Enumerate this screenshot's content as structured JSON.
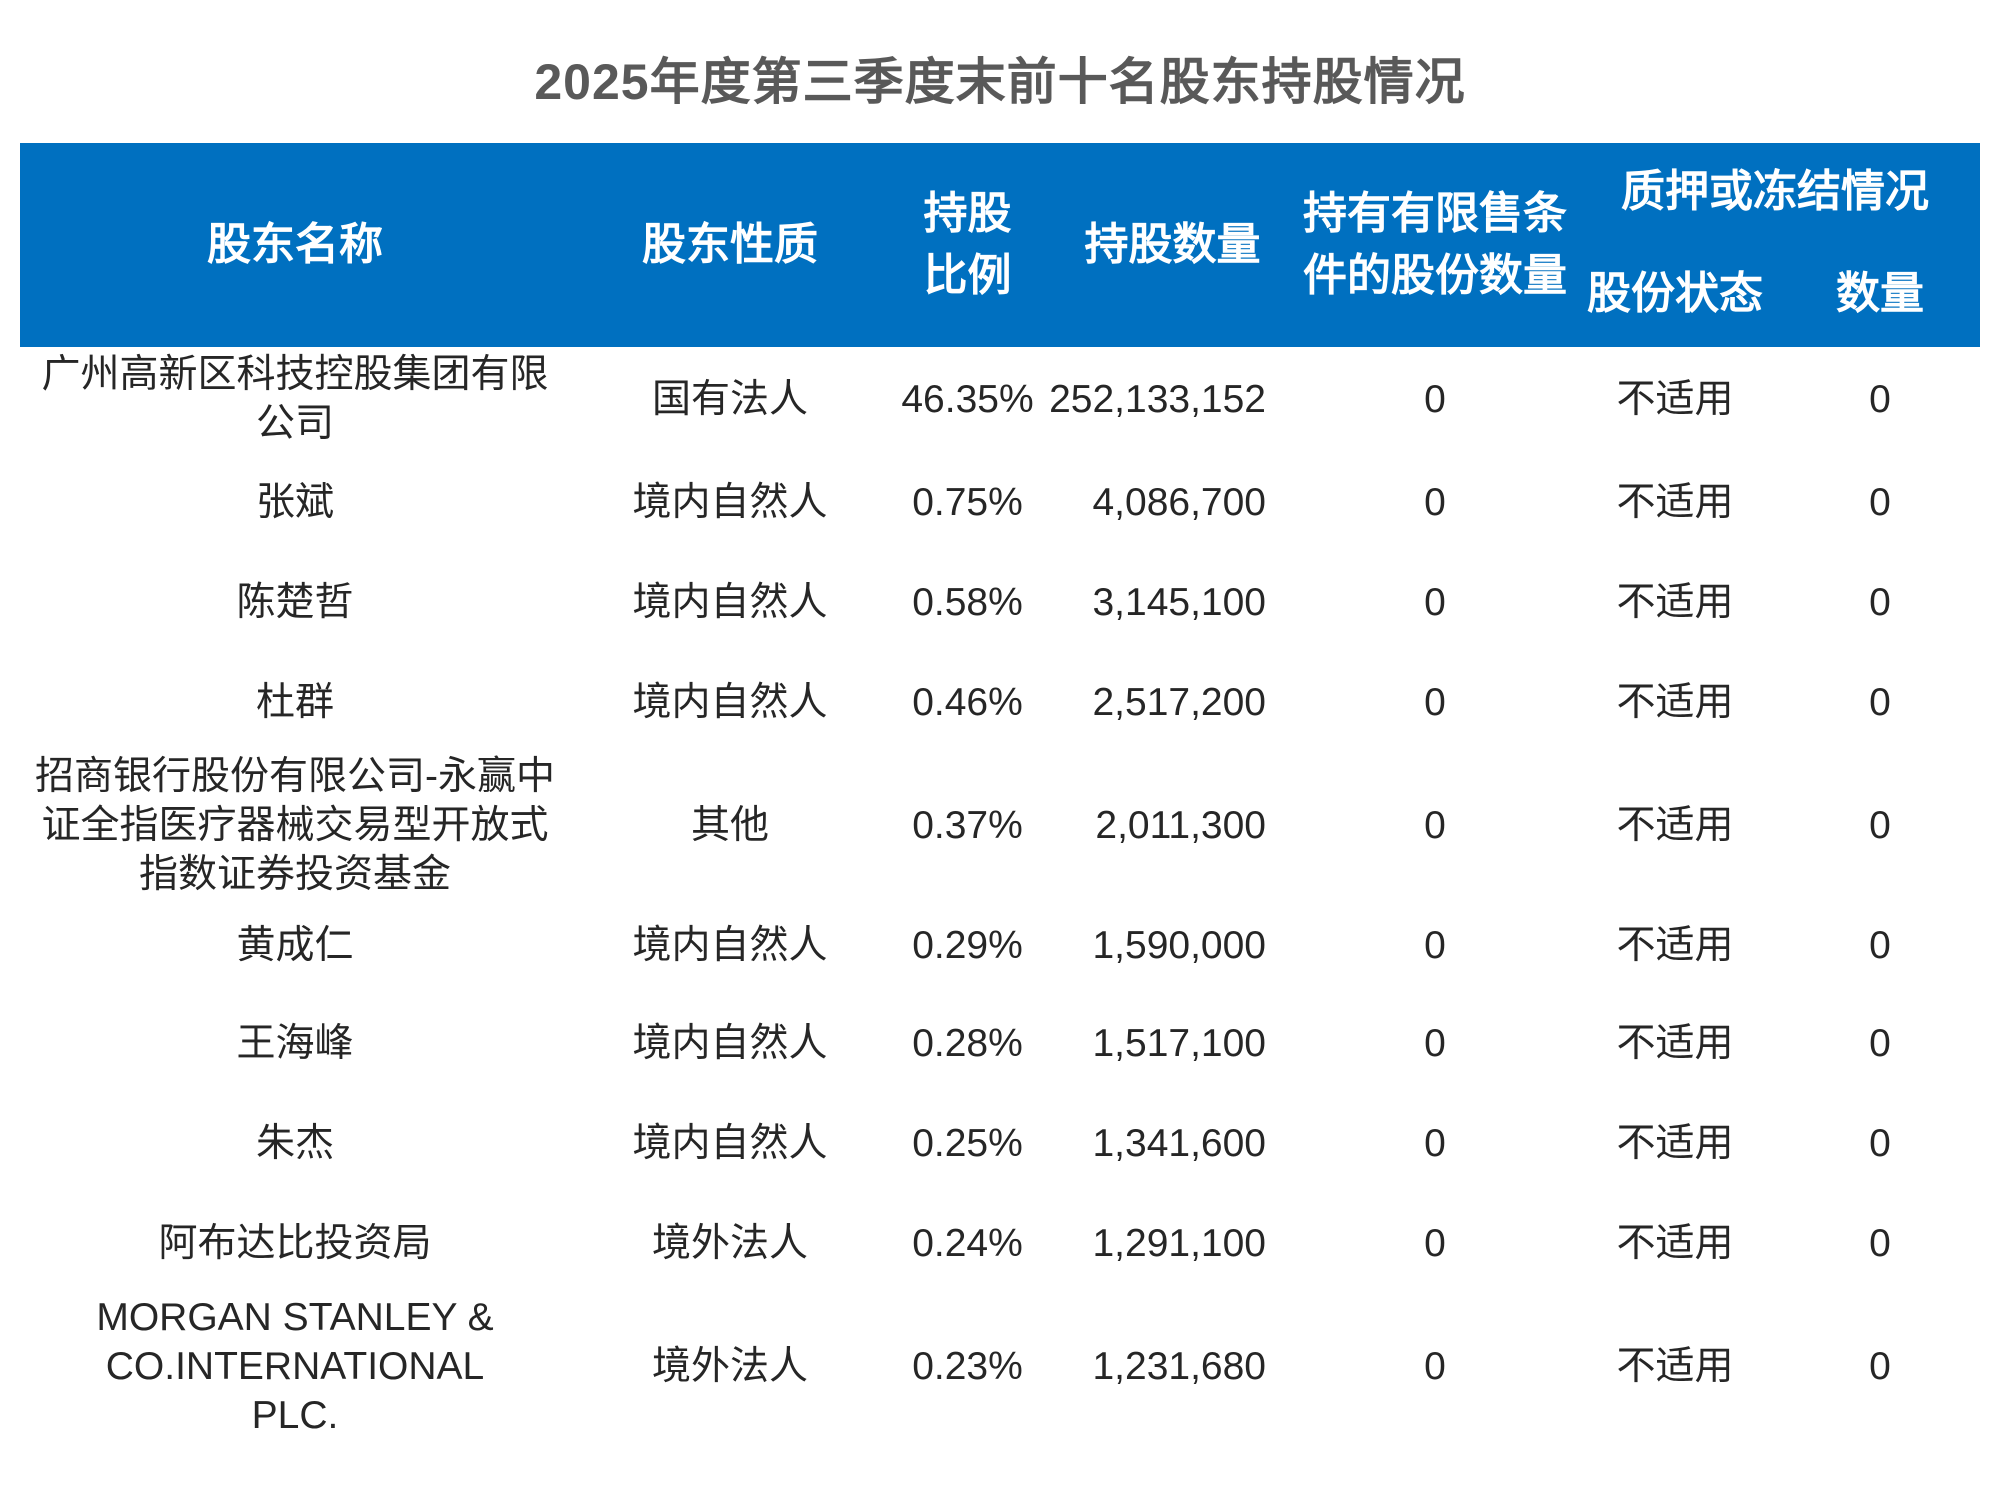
{
  "title": "2025年度第三季度末前十名股东持股情况",
  "colors": {
    "header_bg": "#0070C0",
    "header_text": "#FFFFFF",
    "title_text": "#595959",
    "body_text": "#262626"
  },
  "table": {
    "columns": {
      "name": "股东名称",
      "nature": "股东性质",
      "ratio": "持股\n比例",
      "shares": "持股数量",
      "restricted": "持有有限售条\n件的股份数量",
      "pledge_group": "质押或冻结情况",
      "pledge_status": "股份状态",
      "pledge_qty": "数量"
    },
    "rows": [
      {
        "name": "广州高新区科技控股集团有限\n公司",
        "nature": "国有法人",
        "ratio": "46.35%",
        "shares": "252,133,152",
        "restricted": "0",
        "status": "不适用",
        "qty": "0"
      },
      {
        "name": "张斌",
        "nature": "境内自然人",
        "ratio": "0.75%",
        "shares": "4,086,700",
        "restricted": "0",
        "status": "不适用",
        "qty": "0"
      },
      {
        "name": "陈楚哲",
        "nature": "境内自然人",
        "ratio": "0.58%",
        "shares": "3,145,100",
        "restricted": "0",
        "status": "不适用",
        "qty": "0"
      },
      {
        "name": "杜群",
        "nature": "境内自然人",
        "ratio": "0.46%",
        "shares": "2,517,200",
        "restricted": "0",
        "status": "不适用",
        "qty": "0"
      },
      {
        "name": "招商银行股份有限公司-永赢中\n证全指医疗器械交易型开放式\n指数证券投资基金",
        "nature": "其他",
        "ratio": "0.37%",
        "shares": "2,011,300",
        "restricted": "0",
        "status": "不适用",
        "qty": "0"
      },
      {
        "name": "黄成仁",
        "nature": "境内自然人",
        "ratio": "0.29%",
        "shares": "1,590,000",
        "restricted": "0",
        "status": "不适用",
        "qty": "0"
      },
      {
        "name": "王海峰",
        "nature": "境内自然人",
        "ratio": "0.28%",
        "shares": "1,517,100",
        "restricted": "0",
        "status": "不适用",
        "qty": "0"
      },
      {
        "name": "朱杰",
        "nature": "境内自然人",
        "ratio": "0.25%",
        "shares": "1,341,600",
        "restricted": "0",
        "status": "不适用",
        "qty": "0"
      },
      {
        "name": "阿布达比投资局",
        "nature": "境外法人",
        "ratio": "0.24%",
        "shares": "1,291,100",
        "restricted": "0",
        "status": "不适用",
        "qty": "0"
      },
      {
        "name": "MORGAN STANLEY &\nCO.INTERNATIONAL\nPLC.",
        "nature": "境外法人",
        "ratio": "0.23%",
        "shares": "1,231,680",
        "restricted": "0",
        "status": "不适用",
        "qty": "0"
      }
    ]
  }
}
